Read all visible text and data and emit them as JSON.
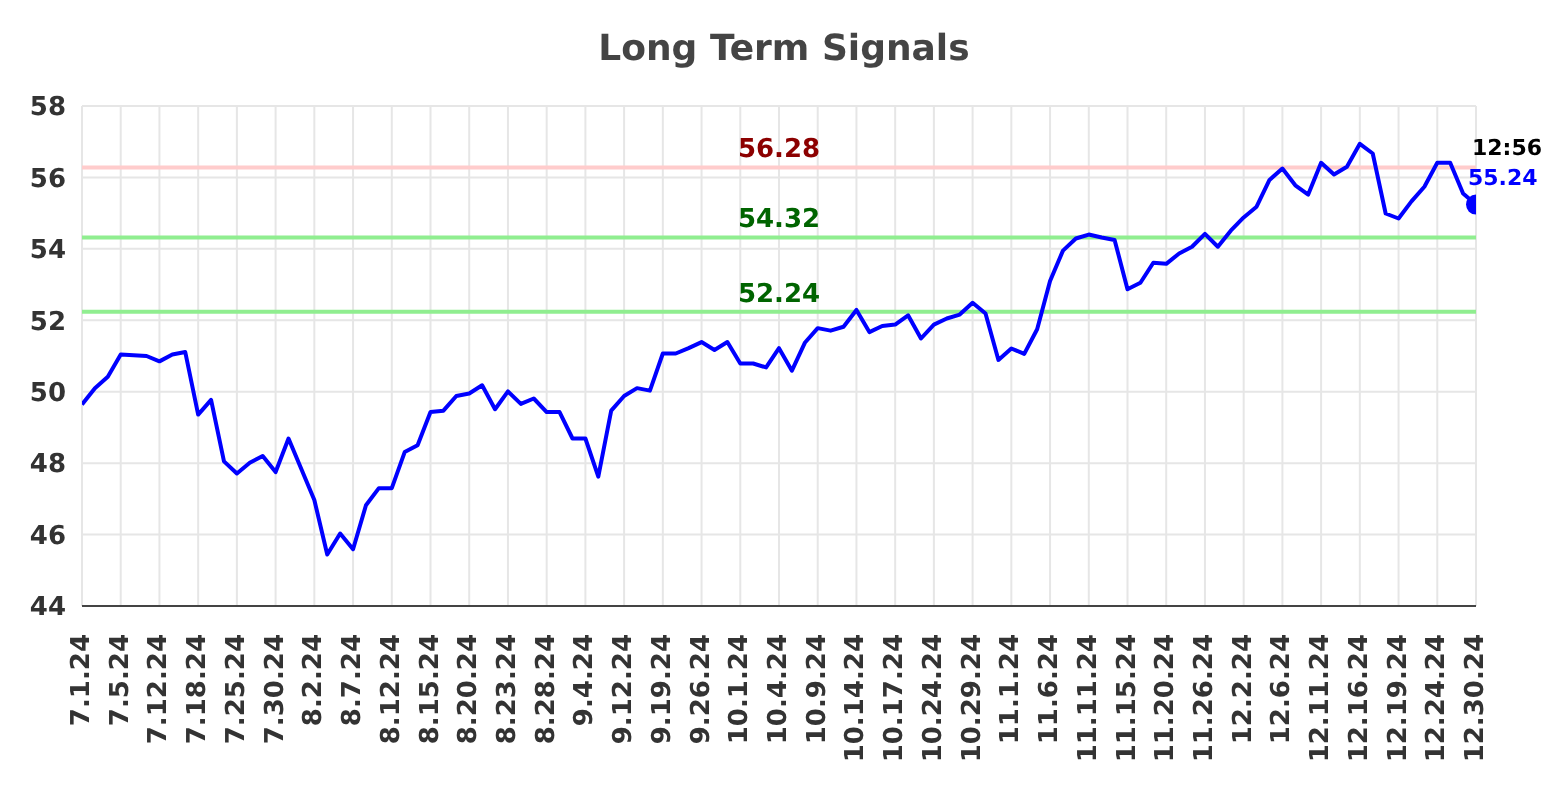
{
  "chart_data": {
    "type": "line",
    "title": "Long Term Signals",
    "categories": [
      "7.1.24",
      null,
      null,
      "7.5.24",
      null,
      null,
      "7.12.24",
      null,
      null,
      "7.18.24",
      null,
      null,
      "7.25.24",
      null,
      null,
      "7.30.24",
      null,
      null,
      "8.2.24",
      null,
      null,
      "8.7.24",
      null,
      null,
      "8.12.24",
      null,
      null,
      "8.15.24",
      null,
      null,
      "8.20.24",
      null,
      null,
      "8.23.24",
      null,
      null,
      "8.28.24",
      null,
      null,
      "9.4.24",
      null,
      null,
      "9.12.24",
      null,
      null,
      "9.19.24",
      null,
      null,
      "9.26.24",
      null,
      null,
      "10.1.24",
      null,
      null,
      "10.4.24",
      null,
      null,
      "10.9.24",
      null,
      null,
      "10.14.24",
      null,
      null,
      "10.17.24",
      null,
      null,
      "10.24.24",
      null,
      null,
      "10.29.24",
      null,
      null,
      "11.1.24",
      null,
      null,
      "11.6.24",
      null,
      null,
      "11.11.24",
      null,
      null,
      "11.15.24",
      null,
      null,
      "11.20.24",
      null,
      null,
      "11.26.24",
      null,
      null,
      "12.2.24",
      null,
      null,
      "12.6.24",
      null,
      null,
      "12.11.24",
      null,
      null,
      "12.16.24",
      null,
      null,
      "12.19.24",
      null,
      null,
      "12.24.24",
      null,
      null,
      "12.30.24"
    ],
    "series": [
      {
        "color": "#0000ff",
        "values": [
          49.64,
          50.1,
          50.42,
          51.04,
          51.02,
          51.0,
          50.85,
          51.04,
          51.11,
          49.36,
          49.77,
          48.05,
          47.71,
          48.01,
          48.2,
          47.75,
          48.69,
          47.83,
          46.97,
          45.44,
          46.03,
          45.59,
          46.82,
          47.3,
          47.3,
          48.31,
          48.5,
          49.43,
          49.47,
          49.88,
          49.95,
          50.18,
          49.51,
          50.01,
          49.66,
          49.81,
          49.43,
          49.43,
          48.69,
          48.69,
          47.62,
          49.47,
          49.88,
          50.1,
          50.03,
          51.07,
          51.07,
          51.22,
          51.39,
          51.17,
          51.39,
          50.79,
          50.79,
          50.68,
          51.22,
          50.59,
          51.37,
          51.78,
          51.71,
          51.82,
          52.29,
          51.67,
          51.84,
          51.88,
          52.14,
          51.49,
          51.88,
          52.05,
          52.16,
          52.49,
          52.19,
          50.89,
          51.21,
          51.06,
          51.75,
          53.1,
          53.95,
          54.29,
          54.4,
          54.32,
          54.25,
          52.87,
          53.05,
          53.61,
          53.58,
          53.87,
          54.06,
          54.42,
          54.06,
          54.51,
          54.88,
          55.18,
          55.93,
          56.25,
          55.78,
          55.52,
          56.41,
          56.08,
          56.3,
          56.94,
          56.67,
          54.99,
          54.85,
          55.33,
          55.74,
          56.41,
          56.41,
          55.55,
          55.24
        ],
        "value_labels": [
          null,
          null,
          null,
          null,
          null,
          null,
          null,
          null,
          null,
          null,
          null,
          null,
          null,
          null,
          null,
          null,
          null,
          null,
          null,
          null,
          null,
          null,
          null,
          null,
          null,
          null,
          null,
          null,
          null,
          null,
          null,
          null,
          null,
          null,
          null,
          null,
          null,
          null,
          null,
          null,
          null,
          null,
          null,
          null,
          null,
          null,
          null,
          null,
          null,
          null,
          null,
          null,
          null,
          null,
          null,
          null,
          null,
          null,
          null,
          null,
          null,
          null,
          null,
          null,
          null,
          null,
          null,
          null,
          null,
          null,
          null,
          null,
          null,
          null,
          null,
          null,
          null,
          null,
          null,
          null,
          null,
          null,
          null,
          null,
          null,
          null,
          null,
          null,
          null,
          null,
          null,
          null,
          null,
          null,
          null,
          null,
          null,
          null,
          null,
          null,
          null,
          null,
          null,
          null,
          null,
          null,
          null,
          null,
          "55.24"
        ]
      }
    ],
    "ylim": [
      44,
      58
    ],
    "yticks": [
      44,
      46,
      48,
      50,
      52,
      54,
      56,
      58
    ],
    "grid": true,
    "marker": "none",
    "line_style": "solid",
    "ref_lines": [
      {
        "axis": "y",
        "value": 56.28,
        "label": "56.28",
        "color": "#ffcccc"
      },
      {
        "axis": "y",
        "value": 54.32,
        "label": "54.32",
        "color": "#90ee90"
      },
      {
        "axis": "y",
        "value": 52.24,
        "label": "52.24",
        "color": "#90ee90"
      }
    ],
    "annotations": [
      {
        "text": "12:56",
        "x": "12.30.24",
        "y": 55.24
      }
    ]
  }
}
